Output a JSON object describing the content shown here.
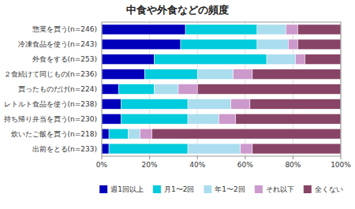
{
  "chart_data": {
    "type": "bar",
    "orientation": "horizontal",
    "stacked": true,
    "title": "中食や外食などの頻度",
    "categories": [
      "惣菜を買う(n=246)",
      "冷凍食品を使う(n=243)",
      "外食をする(n=253)",
      "２食続けて同じもの(n=236)",
      "買ったものだけ(n=224)",
      "レトルト食品を使う(n=238)",
      "持ち帰り弁当を買う(n=230)",
      "炊いたご飯を買う(n=218)",
      "出前をとる(n=233)"
    ],
    "series": [
      {
        "name": "週1回以上",
        "color": "#0000BB",
        "values": [
          35,
          33,
          22,
          18,
          7,
          8,
          8,
          3,
          3
        ]
      },
      {
        "name": "月1〜2回",
        "color": "#00CCDD",
        "values": [
          30,
          32,
          47,
          22,
          15,
          28,
          28,
          8,
          33
        ]
      },
      {
        "name": "年1〜2回",
        "color": "#AADDEE",
        "values": [
          12,
          13,
          12,
          15,
          10,
          18,
          13,
          5,
          22
        ]
      },
      {
        "name": "それ以下",
        "color": "#CC99CC",
        "values": [
          5,
          4,
          4,
          8,
          8,
          8,
          7,
          5,
          5
        ]
      },
      {
        "name": "全くない",
        "color": "#884466",
        "values": [
          18,
          18,
          15,
          37,
          60,
          38,
          44,
          79,
          37
        ]
      }
    ],
    "xlim": [
      0,
      100
    ],
    "xticks": [
      {
        "value": 0,
        "label": "0%"
      },
      {
        "value": 20,
        "label": "20%"
      },
      {
        "value": 40,
        "label": "40%"
      },
      {
        "value": 60,
        "label": "60%"
      },
      {
        "value": 80,
        "label": "80%"
      },
      {
        "value": 100,
        "label": "100%"
      }
    ],
    "grid": true,
    "legend": "bottom"
  }
}
